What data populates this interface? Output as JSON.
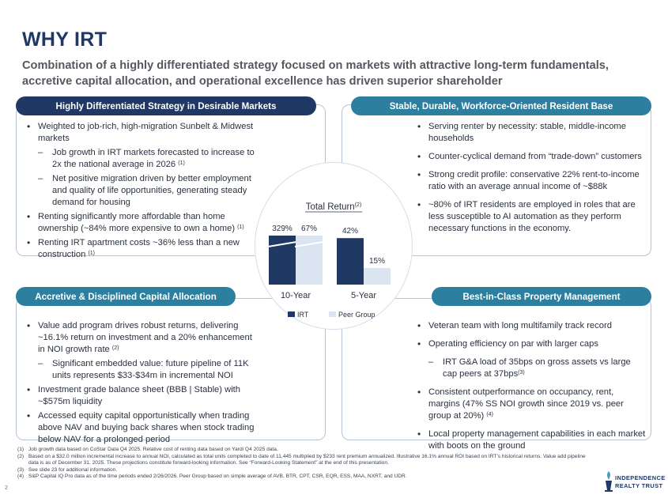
{
  "page": {
    "title": "WHY IRT",
    "subtitle": "Combination of a highly differentiated strategy focused on markets with attractive long-term fundamentals, accretive capital allocation, and operational excellence has driven superior shareholder",
    "page_number": "2"
  },
  "colors": {
    "navy": "#1f3864",
    "teal": "#2c7f9f",
    "irt_bar": "#1f3864",
    "peer_bar": "#dbe5f2"
  },
  "panels": {
    "top_left": {
      "heading": "Highly Differentiated Strategy in Desirable Markets",
      "items": [
        {
          "kind": "bullet",
          "text": "Weighted to job-rich, high-migration Sunbelt & Midwest markets",
          "note": ""
        },
        {
          "kind": "dash",
          "text": "Job growth in IRT markets forecasted to increase to 2x the national average in 2026",
          "note": "(1)"
        },
        {
          "kind": "dash",
          "text": "Net positive migration driven by better employment and quality of life opportunities, generating steady demand for housing",
          "note": ""
        },
        {
          "kind": "bullet",
          "text": "Renting significantly more affordable than home ownership (~84% more expensive to own a home)",
          "note": "(1)"
        },
        {
          "kind": "bullet",
          "text": "Renting IRT apartment costs ~36% less than a new construction",
          "note": "(1)"
        }
      ]
    },
    "top_right": {
      "heading": "Stable, Durable, Workforce-Oriented Resident Base",
      "items": [
        {
          "kind": "bullet",
          "text": "Serving renter by necessity: stable, middle-income households",
          "note": ""
        },
        {
          "kind": "bullet",
          "text": "Counter-cyclical demand from “trade-down” customers",
          "note": ""
        },
        {
          "kind": "bullet",
          "text": "Strong credit profile: conservative 22% rent-to-income ratio with an average annual income of ~$88k",
          "note": ""
        },
        {
          "kind": "bullet",
          "text": "~80% of IRT residents are employed in roles that are less susceptible to AI automation as they perform necessary functions in the economy.",
          "note": ""
        }
      ]
    },
    "bottom_left": {
      "heading": "Accretive & Disciplined Capital Allocation",
      "items": [
        {
          "kind": "bullet",
          "text": "Value add program drives robust returns, delivering ~16.1% return on investment and a 20% enhancement in NOI growth rate",
          "note": "(2)"
        },
        {
          "kind": "dash",
          "text": "Significant embedded value: future pipeline of 11K units represents $33-$34m in incremental NOI",
          "note": ""
        },
        {
          "kind": "bullet",
          "text": "Investment grade balance sheet (BBB | Stable) with ~$575m liquidity",
          "note": ""
        },
        {
          "kind": "bullet",
          "text": "Accessed equity capital opportunistically when trading above NAV and buying back shares when stock trading below NAV for a prolonged period",
          "note": ""
        }
      ]
    },
    "bottom_right": {
      "heading": "Best-in-Class Property Management",
      "items": [
        {
          "kind": "bullet",
          "text": "Veteran team with long multifamily track record",
          "note": ""
        },
        {
          "kind": "bullet",
          "text": "Operating efficiency on par with larger caps",
          "note": ""
        },
        {
          "kind": "dash",
          "text": "IRT G&A load of 35bps on gross assets vs large cap peers at 37bps",
          "note": "(3)"
        },
        {
          "kind": "bullet",
          "text": "Consistent outperformance on occupancy, rent, margins (47% SS NOI growth since 2019 vs. peer group at 20%)",
          "note": "(4)"
        },
        {
          "kind": "bullet",
          "text": "Local property management capabilities in each market with boots on the ground",
          "note": ""
        }
      ]
    }
  },
  "chart_data": {
    "type": "bar",
    "title": "Total Return",
    "title_note": "(2)",
    "categories": [
      "10-Year",
      "5-Year"
    ],
    "series": [
      {
        "name": "IRT",
        "values": [
          329,
          42
        ],
        "labels": [
          "329%",
          "42%"
        ]
      },
      {
        "name": "Peer Group",
        "values": [
          67,
          15
        ],
        "labels": [
          "67%",
          "15%"
        ]
      }
    ],
    "axis_break": true,
    "legend_position": "bottom"
  },
  "footnotes": [
    {
      "num": "(1)",
      "text": "Job growth data based on CoStar Data Q4 2025. Relative cost of renting data based on Yardi Q4 2025 data."
    },
    {
      "num": "(2)",
      "text": "Based on a $32.0 million incremental increase to annual NOI, calculated as total units completed to date of 11,445 multiplied by $233 rent premium annualized. Illustrative 16.1% annual ROI based on IRT’s historical returns. Value add pipeline data is as of December 31, 2025. These projections constitute forward-looking information. See “Forward-Looking Statement” at the end of this presentation."
    },
    {
      "num": "(3)",
      "text": "See slide 23 for additional information."
    },
    {
      "num": "(4)",
      "text": "S&P Capital IQ Pro data as of the time periods ended 2/26/2026. Peer Group based on simple average of AVB, BTR, CPT, CSR, EQR, ESS, MAA, NXRT, and UDR."
    }
  ],
  "logo": {
    "icon": "torch-icon",
    "line1": "INDEPENDENCE",
    "line2": "REALTY TRUST"
  }
}
